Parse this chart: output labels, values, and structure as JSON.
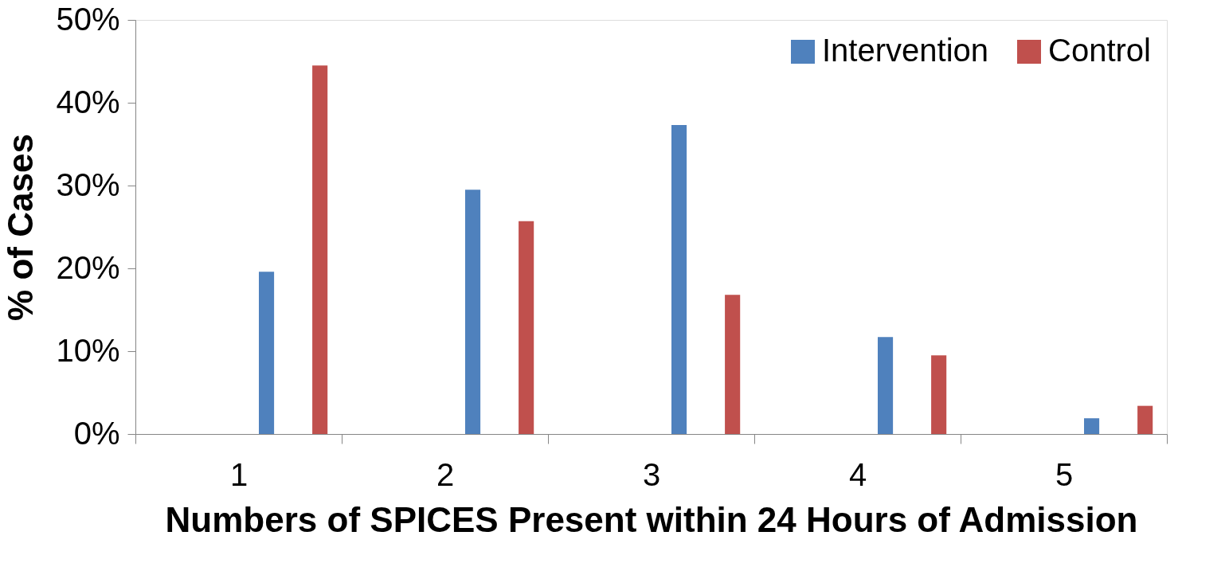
{
  "chart_data": {
    "type": "bar",
    "categories": [
      "1",
      "2",
      "3",
      "4",
      "5"
    ],
    "series": [
      {
        "name": "Intervention",
        "color": "#4f81bd",
        "values": [
          19.6,
          29.5,
          37.3,
          11.7,
          1.9
        ]
      },
      {
        "name": "Control",
        "color": "#c0504d",
        "values": [
          44.5,
          25.7,
          16.8,
          9.5,
          3.4
        ]
      }
    ],
    "xlabel": "Numbers of SPICES Present within 24 Hours of Admission",
    "ylabel": "% of Cases",
    "ylim": [
      0,
      50
    ],
    "yticks": [
      {
        "value": 0,
        "label": "0%"
      },
      {
        "value": 10,
        "label": "10%"
      },
      {
        "value": 20,
        "label": "20%"
      },
      {
        "value": 30,
        "label": "30%"
      },
      {
        "value": 40,
        "label": "40%"
      },
      {
        "value": 50,
        "label": "50%"
      }
    ],
    "grid": false,
    "legend": "top right"
  }
}
